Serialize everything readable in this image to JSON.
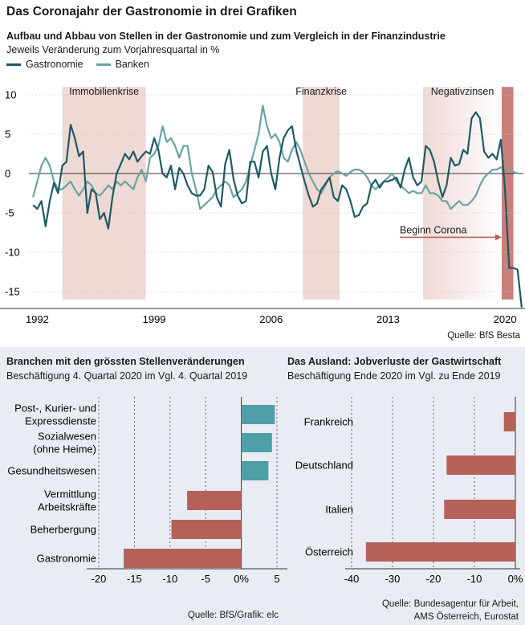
{
  "title": "Das Coronajahr der Gastronomie in drei Grafiken",
  "chart_data": [
    {
      "type": "line",
      "title": "Aufbau und Abbau von Stellen in der Gastronomie und zum Vergleich in der Finanzindustrie",
      "subtitle": "Jeweils Veränderung zum Vorjahresquartal in %",
      "x_ticks": [
        "1992",
        "1999",
        "2006",
        "2013",
        "2020"
      ],
      "xlim": [
        1991.5,
        2021.1
      ],
      "ylim": [
        -16,
        11
      ],
      "y_ticks": [
        10,
        5,
        0,
        -5,
        -10,
        -15
      ],
      "shaded_periods": [
        {
          "label": "Immobilienkrise",
          "from": 1993.5,
          "to": 1998.5
        },
        {
          "label": "Finanzkrise",
          "from": 2007.9,
          "to": 2010.1
        },
        {
          "label": "Negativzinsen",
          "from": 2015.1,
          "to": 2019.8
        },
        {
          "label": "",
          "from": 2019.8,
          "to": 2020.5
        }
      ],
      "annotation": "Beginn Corona",
      "series": [
        {
          "name": "Gastronomie",
          "color": "#1d5a63",
          "points": [
            [
              1991.75,
              -4
            ],
            [
              1992.0,
              -4.5
            ],
            [
              1992.25,
              -3.5
            ],
            [
              1992.5,
              -6.7
            ],
            [
              1992.75,
              -3.5
            ],
            [
              1993.0,
              -1.2
            ],
            [
              1993.25,
              -2.5
            ],
            [
              1993.5,
              1
            ],
            [
              1993.75,
              1.5
            ],
            [
              1994.0,
              6.2
            ],
            [
              1994.25,
              4.5
            ],
            [
              1994.5,
              2.2
            ],
            [
              1994.75,
              2.8
            ],
            [
              1995.0,
              -5
            ],
            [
              1995.25,
              -2
            ],
            [
              1995.5,
              -2.5
            ],
            [
              1995.75,
              -5.8
            ],
            [
              1996.0,
              -5
            ],
            [
              1996.25,
              -7
            ],
            [
              1996.5,
              -3
            ],
            [
              1996.75,
              0
            ],
            [
              1997.0,
              1.2
            ],
            [
              1997.25,
              2.5
            ],
            [
              1997.5,
              1.8
            ],
            [
              1997.75,
              2.8
            ],
            [
              1998.0,
              1.5
            ],
            [
              1998.25,
              2.2
            ],
            [
              1998.5,
              2.8
            ],
            [
              1998.75,
              2.5
            ],
            [
              1999.0,
              4.5
            ],
            [
              1999.25,
              3
            ],
            [
              1999.5,
              0
            ],
            [
              1999.75,
              -0.5
            ],
            [
              2000.0,
              1
            ],
            [
              2000.25,
              -2
            ],
            [
              2000.5,
              0.7
            ],
            [
              2000.75,
              0
            ],
            [
              2001.0,
              -1.5
            ],
            [
              2001.25,
              -2.5
            ],
            [
              2001.5,
              -2.8
            ],
            [
              2001.75,
              -2.8
            ],
            [
              2002.0,
              -2
            ],
            [
              2002.25,
              1
            ],
            [
              2002.5,
              0.2
            ],
            [
              2002.75,
              -3
            ],
            [
              2003.0,
              -4.2
            ],
            [
              2003.25,
              1.2
            ],
            [
              2003.5,
              3
            ],
            [
              2003.75,
              -0.7
            ],
            [
              2004.0,
              -2.8
            ],
            [
              2004.25,
              -3.8
            ],
            [
              2004.5,
              -3.5
            ],
            [
              2004.75,
              1.5
            ],
            [
              2005.0,
              1.5
            ],
            [
              2005.25,
              -0.5
            ],
            [
              2005.5,
              2.8
            ],
            [
              2005.75,
              3.5
            ],
            [
              2006.0,
              0
            ],
            [
              2006.25,
              -2
            ],
            [
              2006.5,
              2
            ],
            [
              2006.75,
              4.5
            ],
            [
              2007.0,
              5.5
            ],
            [
              2007.25,
              6
            ],
            [
              2007.5,
              3
            ],
            [
              2007.75,
              1
            ],
            [
              2008.0,
              -1
            ],
            [
              2008.25,
              -2.8
            ],
            [
              2008.5,
              -4.2
            ],
            [
              2008.75,
              -3.8
            ],
            [
              2009.0,
              -2
            ],
            [
              2009.25,
              -1.3
            ],
            [
              2009.5,
              -0.5
            ],
            [
              2009.75,
              -3
            ],
            [
              2010.0,
              -3.5
            ],
            [
              2010.25,
              -1.5
            ],
            [
              2010.5,
              -2
            ],
            [
              2010.75,
              -3.5
            ],
            [
              2011.0,
              -5.5
            ],
            [
              2011.25,
              -5.3
            ],
            [
              2011.5,
              -4.2
            ],
            [
              2011.75,
              -3.8
            ],
            [
              2012.0,
              -1.5
            ],
            [
              2012.25,
              -0.8
            ],
            [
              2012.5,
              -1.8
            ],
            [
              2012.75,
              -1
            ],
            [
              2013.0,
              -1
            ],
            [
              2013.25,
              -0.8
            ],
            [
              2013.5,
              -0.5
            ],
            [
              2013.75,
              -1.8
            ],
            [
              2014.0,
              0.5
            ],
            [
              2014.25,
              2
            ],
            [
              2014.5,
              -0.5
            ],
            [
              2014.75,
              -1.5
            ],
            [
              2015.0,
              -1
            ],
            [
              2015.25,
              3.5
            ],
            [
              2015.5,
              3
            ],
            [
              2015.75,
              1.5
            ],
            [
              2016.0,
              -1
            ],
            [
              2016.25,
              -3
            ],
            [
              2016.5,
              -1.5
            ],
            [
              2016.75,
              2
            ],
            [
              2017.0,
              1
            ],
            [
              2017.25,
              1.2
            ],
            [
              2017.5,
              3
            ],
            [
              2017.75,
              2.5
            ],
            [
              2018.0,
              7
            ],
            [
              2018.25,
              7.8
            ],
            [
              2018.5,
              7
            ],
            [
              2018.75,
              2.8
            ],
            [
              2019.0,
              2
            ],
            [
              2019.25,
              2.5
            ],
            [
              2019.5,
              1.8
            ],
            [
              2019.75,
              4.3
            ],
            [
              2020.0,
              -2
            ],
            [
              2020.25,
              -12
            ],
            [
              2020.5,
              -12
            ],
            [
              2020.75,
              -12.2
            ],
            [
              2021.0,
              -17
            ]
          ]
        },
        {
          "name": "Banken",
          "color": "#6aa3a5",
          "points": [
            [
              1991.75,
              -3
            ],
            [
              1992.0,
              -1
            ],
            [
              1992.25,
              1
            ],
            [
              1992.5,
              2
            ],
            [
              1992.75,
              1
            ],
            [
              1993.0,
              -1
            ],
            [
              1993.25,
              -2
            ],
            [
              1993.5,
              -2
            ],
            [
              1993.75,
              -1.5
            ],
            [
              1994.0,
              -1
            ],
            [
              1994.25,
              -2
            ],
            [
              1994.5,
              -2.8
            ],
            [
              1994.75,
              -2
            ],
            [
              1995.0,
              -1
            ],
            [
              1995.25,
              -1.5
            ],
            [
              1995.5,
              -2.5
            ],
            [
              1995.75,
              -2.8
            ],
            [
              1996.0,
              -2.2
            ],
            [
              1996.25,
              -1.5
            ],
            [
              1996.5,
              -2
            ],
            [
              1996.75,
              -1
            ],
            [
              1997.0,
              -1.5
            ],
            [
              1997.25,
              -1
            ],
            [
              1997.5,
              -1.5
            ],
            [
              1997.75,
              -2
            ],
            [
              1998.0,
              -0.5
            ],
            [
              1998.25,
              0.5
            ],
            [
              1998.5,
              -1
            ],
            [
              1998.75,
              2
            ],
            [
              1999.0,
              2.5
            ],
            [
              1999.25,
              3.5
            ],
            [
              1999.5,
              6
            ],
            [
              1999.75,
              4
            ],
            [
              2000.0,
              4.5
            ],
            [
              2000.25,
              3.5
            ],
            [
              2000.5,
              2
            ],
            [
              2000.75,
              3.5
            ],
            [
              2001.0,
              3.5
            ],
            [
              2001.25,
              0
            ],
            [
              2001.5,
              -2
            ],
            [
              2001.75,
              -4.5
            ],
            [
              2002.0,
              -4
            ],
            [
              2002.25,
              -3.5
            ],
            [
              2002.5,
              -3
            ],
            [
              2002.75,
              -2
            ],
            [
              2003.0,
              -1.5
            ],
            [
              2003.25,
              -1
            ],
            [
              2003.5,
              -1.5
            ],
            [
              2003.75,
              -3
            ],
            [
              2004.0,
              -2.5
            ],
            [
              2004.25,
              -2
            ],
            [
              2004.5,
              -1
            ],
            [
              2004.75,
              1
            ],
            [
              2005.0,
              3
            ],
            [
              2005.25,
              5
            ],
            [
              2005.5,
              8.6
            ],
            [
              2005.75,
              6
            ],
            [
              2006.0,
              4.5
            ],
            [
              2006.25,
              5
            ],
            [
              2006.5,
              4
            ],
            [
              2006.75,
              2
            ],
            [
              2007.0,
              1.5
            ],
            [
              2007.25,
              3
            ],
            [
              2007.5,
              4
            ],
            [
              2007.75,
              3
            ],
            [
              2008.0,
              1.5
            ],
            [
              2008.25,
              0
            ],
            [
              2008.5,
              -1
            ],
            [
              2008.75,
              -2
            ],
            [
              2009.0,
              -2.5
            ],
            [
              2009.25,
              -1.5
            ],
            [
              2009.5,
              -0.5
            ],
            [
              2009.75,
              0
            ],
            [
              2010.0,
              0.3
            ],
            [
              2010.25,
              0
            ],
            [
              2010.5,
              -0.3
            ],
            [
              2010.75,
              0.2
            ],
            [
              2011.0,
              0.5
            ],
            [
              2011.25,
              0.5
            ],
            [
              2011.5,
              0.2
            ],
            [
              2011.75,
              -0.5
            ],
            [
              2012.0,
              -1.5
            ],
            [
              2012.25,
              -2
            ],
            [
              2012.5,
              -1.5
            ],
            [
              2012.75,
              -1
            ],
            [
              2013.0,
              -0.5
            ],
            [
              2013.25,
              0
            ],
            [
              2013.5,
              -1
            ],
            [
              2013.75,
              -1.5
            ],
            [
              2014.0,
              -2
            ],
            [
              2014.25,
              -2.5
            ],
            [
              2014.5,
              -2.2
            ],
            [
              2014.75,
              -2.5
            ],
            [
              2015.0,
              -2.5
            ],
            [
              2015.25,
              -1.5
            ],
            [
              2015.5,
              -2.5
            ],
            [
              2015.75,
              -2.5
            ],
            [
              2016.0,
              -2.8
            ],
            [
              2016.25,
              -3.5
            ],
            [
              2016.5,
              -3.5
            ],
            [
              2016.75,
              -4.5
            ],
            [
              2017.0,
              -4
            ],
            [
              2017.25,
              -3.5
            ],
            [
              2017.5,
              -4
            ],
            [
              2017.75,
              -4
            ],
            [
              2018.0,
              -3.5
            ],
            [
              2018.25,
              -2.8
            ],
            [
              2018.5,
              -1.5
            ],
            [
              2018.75,
              -0.5
            ],
            [
              2019.0,
              0
            ],
            [
              2019.25,
              0.5
            ],
            [
              2019.5,
              0.5
            ],
            [
              2019.75,
              0.8
            ],
            [
              2020.0,
              0.5
            ],
            [
              2020.25,
              0.5
            ],
            [
              2020.5,
              0.2
            ],
            [
              2020.75,
              0
            ]
          ]
        }
      ],
      "source": "Quelle: BfS Besta"
    },
    {
      "type": "bar",
      "orientation": "horizontal",
      "title": "Branchen mit den grössten Stellenveränderungen",
      "subtitle": "Beschäftigung 4. Quartal 2020 im Vgl. 4. Quartal 2019",
      "categories": [
        [
          "Post-, Kurier- und",
          "Expressdienste"
        ],
        [
          "Sozialwesen",
          "(ohne Heime)"
        ],
        [
          "Gesundheitswesen"
        ],
        [
          "Vermittlung",
          "Arbeitskräfte"
        ],
        [
          "Beherbergung"
        ],
        [
          "Gastronomie"
        ]
      ],
      "values": [
        4.7,
        4.3,
        3.8,
        -7.6,
        -9.8,
        -16.5
      ],
      "xlim": [
        -20,
        5
      ],
      "x_ticks": [
        "-20",
        "-15",
        "-10",
        "-5",
        "0%",
        "5"
      ],
      "colors": {
        "positive": "#4e9fa6",
        "negative": "#b5615a"
      },
      "source": "Quelle: BfS/Grafik: elc"
    },
    {
      "type": "bar",
      "orientation": "horizontal",
      "title": "Das Ausland: Jobverluste der Gastwirtschaft",
      "subtitle": "Beschäftigung Ende 2020 im Vgl. zu Ende 2019",
      "categories": [
        [
          "Frankreich"
        ],
        [
          "Deutschland"
        ],
        [
          "Italien"
        ],
        [
          "Österreich"
        ]
      ],
      "values": [
        -2.8,
        -16.8,
        -17.4,
        -36.5
      ],
      "xlim": [
        -40,
        0
      ],
      "x_ticks": [
        "-40",
        "-30",
        "-20",
        "-10",
        "0%"
      ],
      "colors": {
        "negative": "#b5615a"
      },
      "source": [
        "Quelle: Bundesagentur für Arbeit,",
        "AMS Österreich, Eurostat"
      ]
    }
  ]
}
